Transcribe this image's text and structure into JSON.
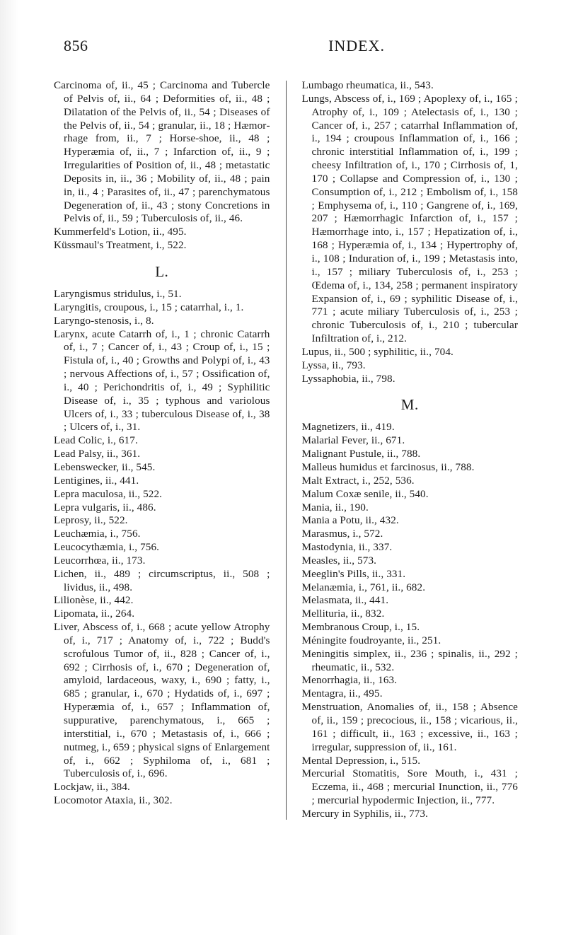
{
  "page": {
    "number": "856",
    "title": "INDEX."
  },
  "left": {
    "block1": [
      "Carcinoma of, ii., 45 ; Carcinoma and Tubercle of Pelvis of, ii., 64 ; Deform­ities of, ii., 48 ; Dilatation of the Pel­vis of, ii., 54 ; Diseases of the Pelvis of, ii., 54 ; granular, ii., 18 ; Hæmor­rhage from, ii., 7 ; Horse-shoe, ii., 48 ; Hyperæmia of, ii., 7 ; Infarction of, ii., 9 ; Irregularities of Position of, ii., 48 ; metastatic Deposits in, ii., 36 ; Mobil­ity of, ii., 48 ; pain in, ii., 4 ; Para­sites of, ii., 47 ; parenchymatous De­generation of, ii., 43 ; stony Concre­tions in Pelvis of, ii., 59 ; Tuberculosis of, ii., 46.",
      "Kummerfeld's Lotion, ii., 495.",
      "Küssmaul's Treatment, i., 522."
    ],
    "sectionL": "L.",
    "block2": [
      "Laryngismus stridulus, i., 51.",
      "Laryngitis, croupous, i., 15 ; catarrhal, i., 1.",
      "Laryngo-stenosis, i., 8.",
      "Larynx, acute Catarrh of, i., 1 ; chronic Catarrh of, i., 7 ; Cancer of, i., 43 ; Croup of, i., 15 ; Fistula of, i., 40 ; Growths and Polypi of, i., 43 ; nervous Affections of, i., 57 ; Ossification of, i., 40 ; Perichondritis of, i., 49 ; Syphi­litic Disease of, i., 35 ; typhous and variolous Ulcers of, i., 33 ; tuberculous Disease of, i., 38 ; Ulcers of, i., 31.",
      "Lead Colic, i., 617.",
      "Lead Palsy, ii., 361.",
      "Lebenswecker, ii., 545.",
      "Lentigines, ii., 441.",
      "Lepra maculosa, ii., 522.",
      "Lepra vulgaris, ii., 486.",
      "Leprosy, ii., 522.",
      "Leuchæmia, i., 756.",
      "Leucocythæmia, i., 756.",
      "Leucorrhœa, ii., 173.",
      "Lichen, ii., 489 ; circumscriptus, ii., 508 ; lividus, ii., 498.",
      "Lilionèse, ii., 442.",
      "Lipomata, ii., 264.",
      "Liver, Abscess of, i., 668 ; acute yellow Atrophy of, i., 717 ; Anatomy of, i., 722 ; Budd's scrofulous Tumor of, ii., 828 ; Cancer of, i., 692 ; Cirrhosis of, i., 670 ; Degeneration of, amyloid, lar­daceous, waxy, i., 690 ; fatty, i., 685 ; granular, i., 670 ; Hydatids of, i., 697 ; Hyperæmia of, i., 657 ; Inflammation of, suppurative, parenchymatous, i., 665 ; interstitial, i., 670 ; Metastasis of, i., 666 ; nutmeg, i., 659 ; physical signs of Enlargement of, i., 662 ; Syphilo­ma of, i., 681 ; Tuberculosis of, i., 696.",
      "Lockjaw, ii., 384.",
      "Locomotor Ataxia, ii., 302."
    ]
  },
  "right": {
    "block1": [
      "Lumbago rheumatica, ii., 543.",
      "Lungs, Abscess of, i., 169 ; Apoplexy of, i., 165 ; Atrophy of, i., 109 ; Atelectasis of, i., 130 ; Cancer of, i., 257 ; catar­rhal Inflammation of, i., 194 ; croupous Inflammation of, i., 166 ; chronic inter­stitial Inflammation of, i., 199 ; cheesy Infiltration of, i., 170 ; Cirrhosis of, 1, 170 ; Collapse and Compression of, i., 130 ; Consumption of, i., 212 ; Em­bolism of, i., 158 ; Emphysema of, i., 110 ; Gangrene of, i., 169, 207 ; Hæm­orrhagic Infarction of, i., 157 ; Hæm­orrhage into, i., 157 ; Hepatization of, i., 168 ; Hyperæmia of, i., 134 ; Hyper­trophy of, i., 108 ; Induration of, i., 199 ; Metastasis into, i., 157 ; miliary Tuber­culosis of, i., 253 ; Œdema of, i., 134, 258 ; permanent inspiratory Expan­sion of, i., 69 ; syphilitic Disease of, i., 771 ; acute miliary Tuberculosis of, i., 253 ; chronic Tuberculosis of, i., 210 ; tubercular Infiltration of, i., 212.",
      "Lupus, ii., 500 ; syphilitic, ii., 704.",
      "Lyssa, ii., 793.",
      "Lyssaphobia, ii., 798."
    ],
    "sectionM": "M.",
    "block2": [
      "Magnetizers, ii., 419.",
      "Malarial Fever, ii., 671.",
      "Malignant Pustule, ii., 788.",
      "Malleus humidus et farcinosus, ii., 788.",
      "Malt Extract, i., 252, 536.",
      "Malum Coxæ senile, ii., 540.",
      "Mania, ii., 190.",
      "Mania a Potu, ii., 432.",
      "Marasmus, i., 572.",
      "Mastodynia, ii., 337.",
      "Measles, ii., 573.",
      "Meeglin's Pills, ii., 331.",
      "Melanæmia, i., 761, ii., 682.",
      "Melasmata, ii., 441.",
      "Mellituria, ii., 832.",
      "Membranous Croup, i., 15.",
      "Méningite foudroyante, ii., 251.",
      "Meningitis simplex, ii., 236 ; spinalis, ii., 292 ; rheumatic, ii., 532.",
      "Menorrhagia, ii., 163.",
      "Mentagra, ii., 495.",
      "Menstruation, Anomalies of, ii., 158 ; Absence of, ii., 159 ; precocious, ii., 158 ; vicarious, ii., 161 ; difficult, ii., 163 ; excessive, ii., 163 ; irregular, suppression of, ii., 161.",
      "Mental Depression, i., 515.",
      "Mercurial Stomatitis, Sore Mouth, i., 431 ; Eczema, ii., 468 ; mercurial Inunction, ii., 776 ; mercurial hypodermic Injec­tion, ii., 777.",
      "Mercury in Syphilis, ii., 773."
    ]
  }
}
